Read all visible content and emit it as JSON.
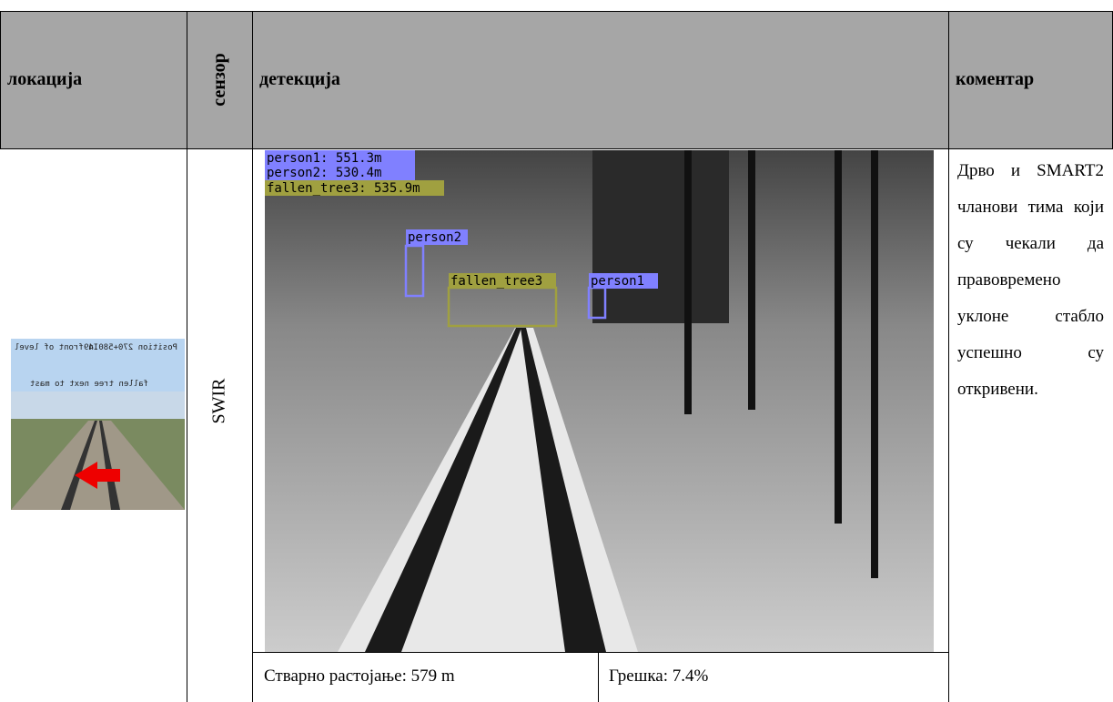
{
  "header": {
    "location": "локација",
    "sensor": "сензор",
    "detection": "детекција",
    "comment": "коментар"
  },
  "row": {
    "location_image": {
      "labels": [
        "In front of level crossing Lipovica",
        "Position 270+580.49",
        "fallen tree next to mast"
      ]
    },
    "sensor": "SWIR",
    "detection_image": {
      "summary": [
        "person1: 551.3m",
        "person2: 530.4m",
        "fallen_tree3: 535.9m"
      ],
      "boxes": [
        "person2",
        "fallen_tree3",
        "person1"
      ]
    },
    "actual_distance": "Стварно растојање: 579 m",
    "error": "Грешка: 7.4%",
    "comment": "Дрво и SMART2 чланови тима који су чекали да правовремено уклоне стабло успешно су откривени."
  }
}
